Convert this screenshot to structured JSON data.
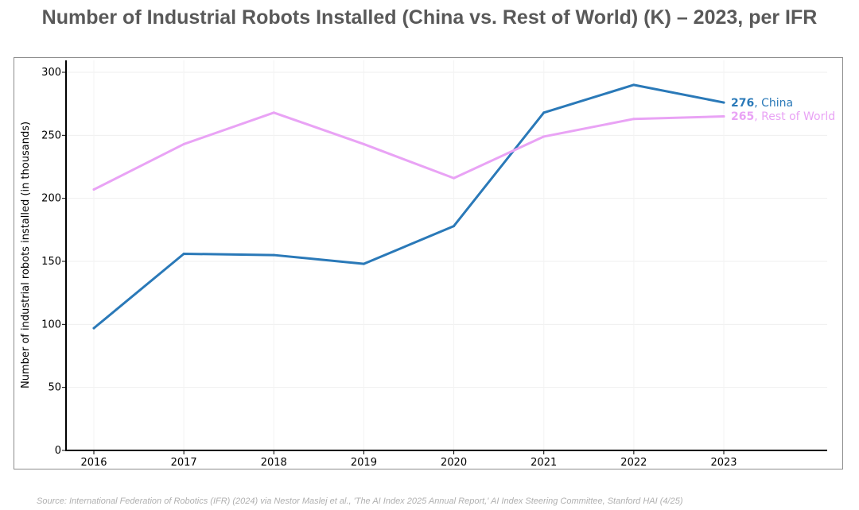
{
  "title": "Number of Industrial Robots Installed (China vs. Rest of World) (K) – 2023, per IFR",
  "source": "Source: International Federation of Robotics (IFR) (2024) via Nestor Maslej et al., 'The AI Index 2025 Annual Report,' AI Index Steering Committee, Stanford HAI (4/25)",
  "chart_data": {
    "type": "line",
    "title": "Number of Industrial Robots Installed (China vs. Rest of World) (K) – 2023, per IFR",
    "xlabel": "",
    "ylabel": "Number of industrial robots installed (in thousands)",
    "x": [
      "2016",
      "2017",
      "2018",
      "2019",
      "2020",
      "2021",
      "2022",
      "2023"
    ],
    "ylim": [
      0,
      300
    ],
    "yticks": [
      "0",
      "50",
      "100",
      "150",
      "200",
      "250",
      "300"
    ],
    "grid": true,
    "series": [
      {
        "name": "China",
        "color": "#2a79b8",
        "values": [
          97,
          156,
          155,
          148,
          178,
          268,
          290,
          276
        ],
        "end_label_value": "276",
        "end_label_name": ", China"
      },
      {
        "name": "Rest of World",
        "color": "#e9a3f5",
        "values": [
          207,
          243,
          268,
          243,
          216,
          249,
          263,
          265
        ],
        "end_label_value": "265",
        "end_label_name": ", Rest of World"
      }
    ]
  }
}
